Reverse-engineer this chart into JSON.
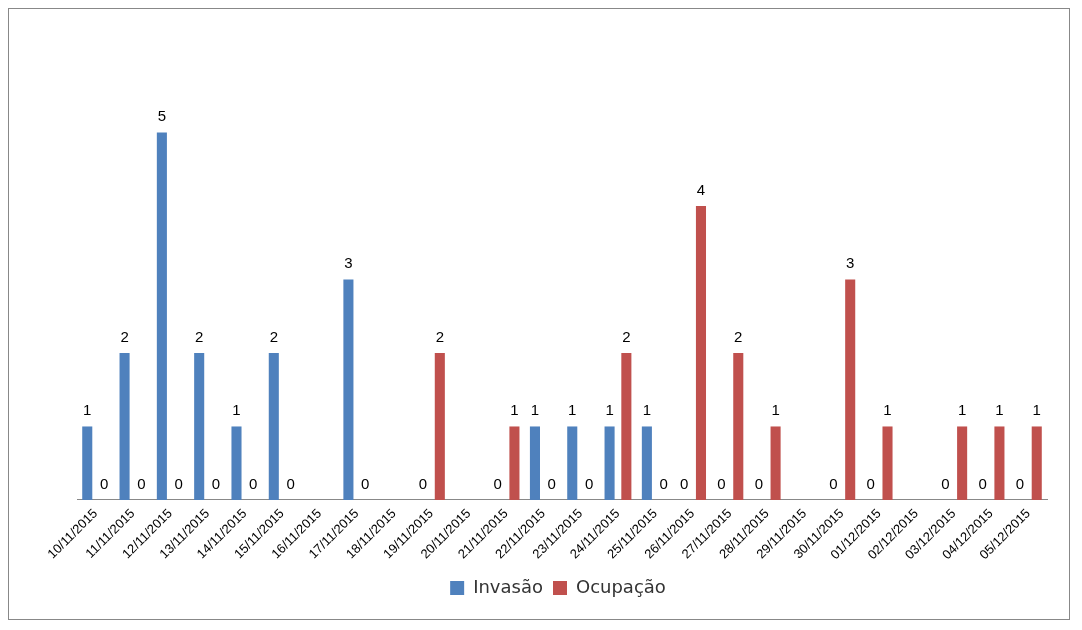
{
  "chart_data": {
    "type": "bar",
    "categories": [
      "10/11/2015",
      "11/11/2015",
      "12/11/2015",
      "13/11/2015",
      "14/11/2015",
      "15/11/2015",
      "16/11/2015",
      "17/11/2015",
      "18/11/2015",
      "19/11/2015",
      "20/11/2015",
      "21/11/2015",
      "22/11/2015",
      "23/11/2015",
      "24/11/2015",
      "25/11/2015",
      "26/11/2015",
      "27/11/2015",
      "28/11/2015",
      "29/11/2015",
      "30/11/2015",
      "01/12/2015",
      "02/12/2015",
      "03/12/2015",
      "04/12/2015",
      "05/12/2015"
    ],
    "series": [
      {
        "name": "Invasão",
        "color": "#4f81bd",
        "values": [
          1,
          2,
          5,
          2,
          1,
          2,
          null,
          3,
          null,
          0,
          null,
          0,
          1,
          1,
          1,
          1,
          0,
          0,
          0,
          null,
          0,
          0,
          null,
          0,
          0,
          0
        ]
      },
      {
        "name": "Ocupação",
        "color": "#c0504d",
        "values": [
          0,
          0,
          0,
          0,
          0,
          0,
          null,
          0,
          null,
          2,
          null,
          1,
          0,
          0,
          2,
          0,
          4,
          2,
          1,
          null,
          3,
          1,
          null,
          1,
          1,
          1
        ]
      }
    ],
    "data_labels": true,
    "legend": "bottom",
    "grid": false
  }
}
